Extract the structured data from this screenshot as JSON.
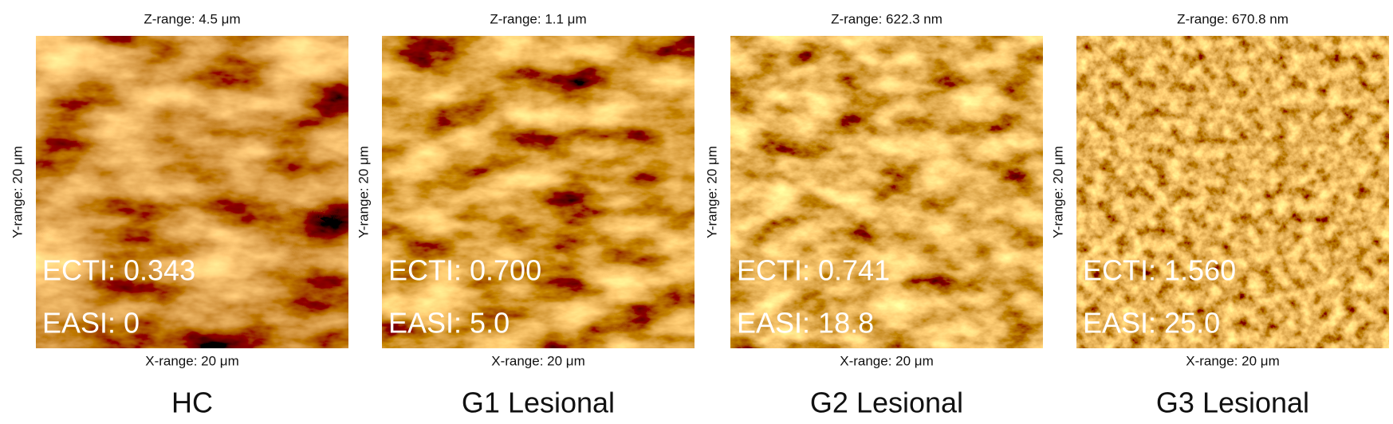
{
  "panels": [
    {
      "z_range": "Z-range: 4.5 μm",
      "y_range": "Y-range: 20 μm",
      "x_range": "X-range: 20 μm",
      "ecti": "ECTI: 0.343",
      "easi": "EASI: 0",
      "label": "HC"
    },
    {
      "z_range": "Z-range: 1.1 μm",
      "y_range": "Y-range: 20 μm",
      "x_range": "X-range: 20 μm",
      "ecti": "ECTI: 0.700",
      "easi": "EASI: 5.0",
      "label": "G1 Lesional"
    },
    {
      "z_range": "Z-range: 622.3 nm",
      "y_range": "Y-range: 20 μm",
      "x_range": "X-range: 20 μm",
      "ecti": "ECTI: 0.741",
      "easi": "EASI: 18.8",
      "label": "G2 Lesional"
    },
    {
      "z_range": "Z-range: 670.8 nm",
      "y_range": "Y-range: 20 μm",
      "x_range": "X-range: 20 μm",
      "ecti": "ECTI: 1.560",
      "easi": "EASI: 25.0",
      "label": "G3 Lesional"
    }
  ]
}
